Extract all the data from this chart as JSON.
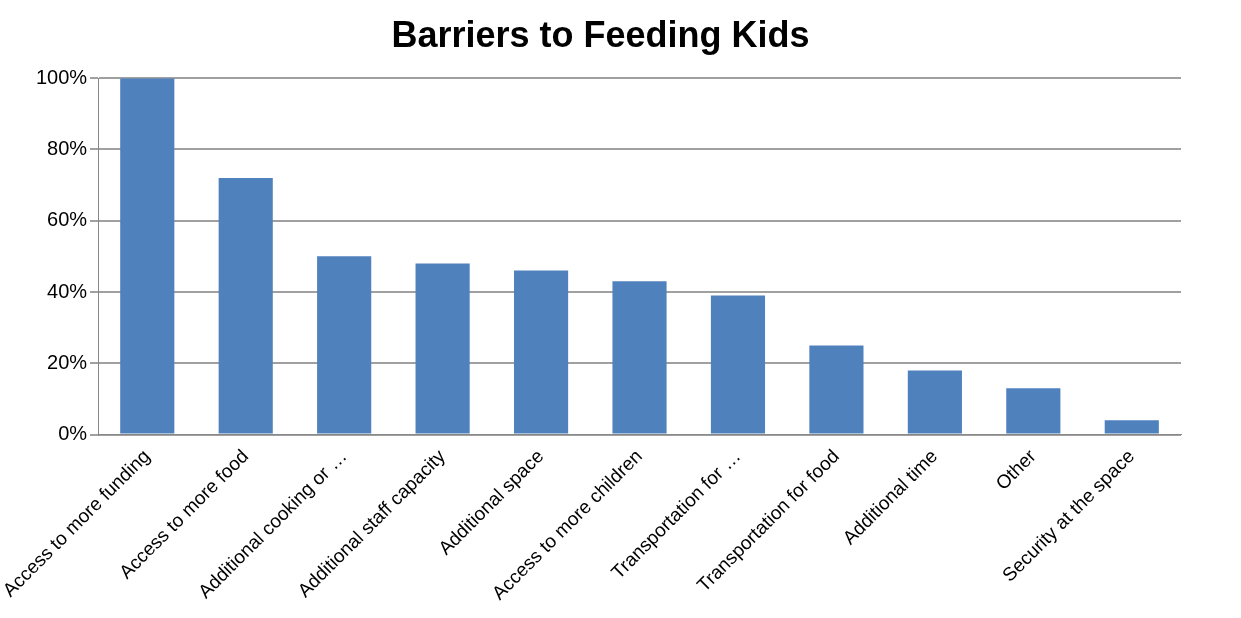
{
  "chart_data": {
    "type": "bar",
    "title": "Barriers to Feeding Kids",
    "categories": [
      "Access to more funding",
      "Access to more food",
      "Additional cooking or …",
      "Additional staff capacity",
      "Additional space",
      "Access to more children",
      "Transportation for …",
      "Transportation for food",
      "Additional time",
      "Other",
      "Security at the space"
    ],
    "values": [
      100,
      72,
      50,
      48,
      46,
      43,
      39,
      25,
      18,
      13,
      4
    ],
    "color": "#4f81bd",
    "ylim": [
      0,
      100
    ],
    "yticks": [
      {
        "value": 0,
        "label": "0%"
      },
      {
        "value": 20,
        "label": "20%"
      },
      {
        "value": 40,
        "label": "40%"
      },
      {
        "value": 60,
        "label": "60%"
      },
      {
        "value": 80,
        "label": "80%"
      },
      {
        "value": 100,
        "label": "100%"
      }
    ],
    "grid": "y"
  }
}
